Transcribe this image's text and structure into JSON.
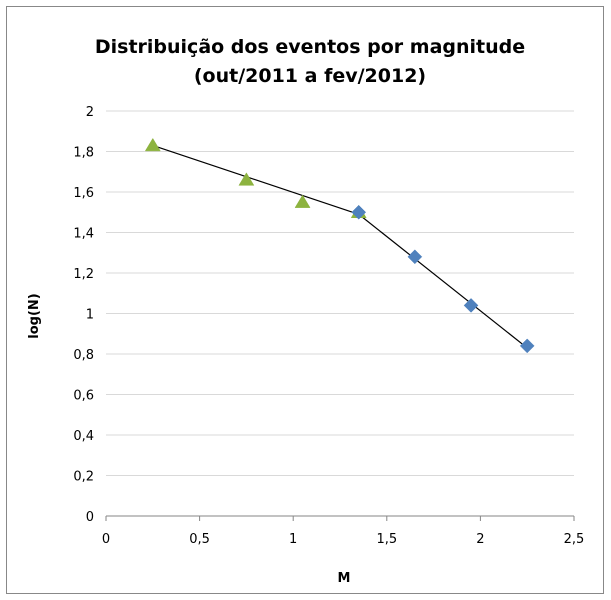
{
  "chart_data": {
    "type": "scatter",
    "title": "Distribuição dos eventos por magnitude",
    "subtitle": "(out/2011 a fev/2012)",
    "xlabel": "M",
    "ylabel": "log(N)",
    "xlim": [
      0,
      2.5
    ],
    "ylim": [
      0,
      2
    ],
    "x_ticks": [
      "0",
      "0,5",
      "1",
      "1,5",
      "2",
      "2,5"
    ],
    "y_ticks": [
      "0",
      "0,2",
      "0,4",
      "0,6",
      "0,8",
      "1",
      "1,2",
      "1,4",
      "1,6",
      "1,8",
      "2"
    ],
    "grid": true,
    "series": [
      {
        "marker": "triangle",
        "color": "#8db33f",
        "x": [
          0.25,
          0.75,
          1.05,
          1.35
        ],
        "y": [
          1.83,
          1.66,
          1.55,
          1.5
        ]
      },
      {
        "marker": "diamond",
        "color": "#4f81bd",
        "x": [
          1.35,
          1.65,
          1.95,
          2.25
        ],
        "y": [
          1.5,
          1.28,
          1.04,
          0.84
        ]
      }
    ],
    "trendlines": [
      {
        "color": "#000000",
        "x": [
          0.25,
          1.35
        ],
        "y": [
          1.83,
          1.49
        ]
      },
      {
        "color": "#000000",
        "x": [
          1.35,
          2.25
        ],
        "y": [
          1.49,
          0.83
        ]
      }
    ]
  }
}
